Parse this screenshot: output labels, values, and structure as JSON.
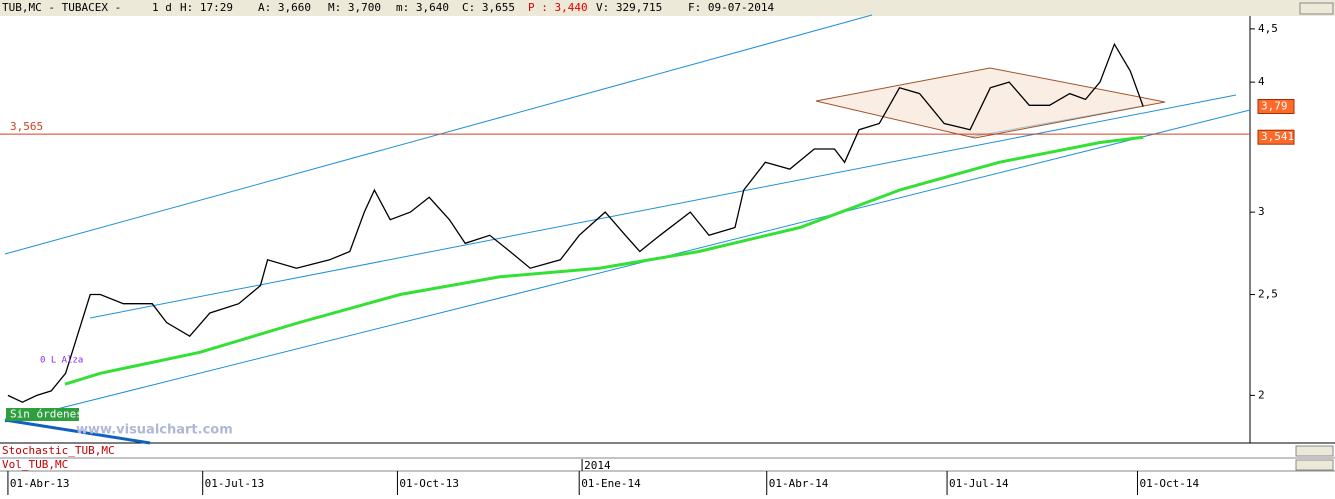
{
  "header": {
    "symbol": "TUB,MC - TUBACEX -",
    "period": "1 d",
    "time": "H: 17:29",
    "open": "A: 3,660",
    "high": "M: 3,700",
    "low": "m: 3,640",
    "close": "C: 3,655",
    "prev": "P : 3,440",
    "volume": "V: 329,715",
    "date": "F: 09-07-2014"
  },
  "chart_data": {
    "type": "line",
    "log_scale": true,
    "ylim": [
      1.8,
      4.62
    ],
    "yticks": [
      {
        "value": 4.5,
        "label": "4,5"
      },
      4,
      3,
      {
        "value": 2.5,
        "label": "2,5"
      },
      2
    ],
    "xlim": [
      -0.55,
      86.1
    ],
    "xticks": [
      {
        "value": 0,
        "label": "01-Abr-13"
      },
      {
        "value": 13.5,
        "label": "01-Jul-13"
      },
      {
        "value": 27,
        "label": "01-Oct-13"
      },
      {
        "value": 39.6,
        "label": "01-Ene-14"
      },
      {
        "value": 52.6,
        "label": "01-Abr-14"
      },
      {
        "value": 65.1,
        "label": "01-Jul-14"
      },
      {
        "value": 78.3,
        "label": "01-Oct-14"
      }
    ],
    "year_label": {
      "value": 39.8,
      "label": "2014"
    },
    "series": [
      {
        "color": "#000000",
        "x": [
          0,
          1,
          2,
          3,
          4,
          5.7,
          6.4,
          8,
          10,
          11,
          12.6,
          14,
          16,
          17.5,
          18,
          20,
          22.3,
          23.7,
          24.7,
          25.4,
          26.5,
          27.9,
          29.2,
          30.6,
          31.7,
          33.4,
          34.8,
          36.2,
          38.3,
          39.6,
          41.4,
          42.8,
          43.8,
          45.2,
          47.3,
          48.6,
          50.4,
          51,
          52.5,
          54.2,
          55.9,
          57.3,
          58,
          59,
          60.4,
          61.8,
          63.2,
          64.9,
          66.7,
          68.1,
          69.4,
          70.8,
          72.2,
          73.6,
          74.7,
          75.7,
          76.7,
          77.8,
          78.7
        ],
        "values": [
          2.0,
          1.97,
          2.0,
          2.02,
          2.1,
          2.5,
          2.5,
          2.45,
          2.45,
          2.35,
          2.28,
          2.4,
          2.45,
          2.55,
          2.7,
          2.65,
          2.7,
          2.75,
          3.0,
          3.15,
          2.95,
          3.0,
          3.1,
          2.95,
          2.8,
          2.85,
          2.75,
          2.65,
          2.7,
          2.85,
          3.0,
          2.85,
          2.75,
          2.85,
          3.0,
          2.85,
          2.9,
          3.15,
          3.35,
          3.3,
          3.45,
          3.45,
          3.35,
          3.6,
          3.65,
          3.95,
          3.9,
          3.65,
          3.6,
          3.95,
          4.0,
          3.8,
          3.8,
          3.9,
          3.85,
          4.0,
          4.35,
          4.1,
          3.79
        ]
      },
      {
        "color": "#33e033",
        "x": [
          3.95,
          6.4,
          13.3,
          20.2,
          27.2,
          34.1,
          41,
          47.9,
          54.9,
          61.8,
          68.7,
          75.7,
          78.7
        ],
        "values": [
          2.05,
          2.1,
          2.2,
          2.35,
          2.5,
          2.6,
          2.65,
          2.75,
          2.9,
          3.15,
          3.35,
          3.5,
          3.541
        ]
      }
    ],
    "hline": {
      "value": 3.565,
      "label": "3,565"
    },
    "price_markers": [
      {
        "value": 3.79,
        "label": "3,79"
      },
      {
        "value": 3.541,
        "label": "3,541"
      }
    ],
    "annotations": {
      "orders": "Sin órdenes",
      "watermark": "www.visualchart.com",
      "signal": "0 L Alza"
    },
    "panes": [
      "Stochastic_TUB,MC",
      "Vol_TUB,MC"
    ]
  }
}
